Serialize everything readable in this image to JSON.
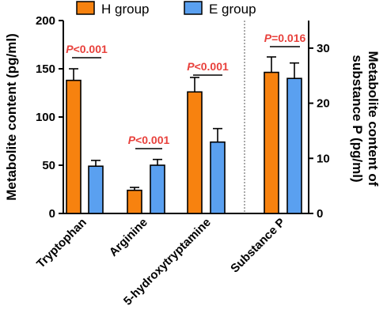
{
  "chart_data": {
    "type": "bar",
    "categories": [
      "Tryptophan",
      "Arginine",
      "5-hydroxytryptamine",
      "Substance P"
    ],
    "legend_position": "top",
    "colors": {
      "H group": "#F7820F",
      "E group": "#5AA0F0",
      "annotation": "#E8413C"
    },
    "series": [
      {
        "name": "H group",
        "values": [
          138,
          24,
          126,
          25.6
        ],
        "errors": [
          12,
          3,
          15,
          2.8
        ]
      },
      {
        "name": "E group",
        "values": [
          49,
          50,
          74,
          24.5
        ],
        "errors": [
          6,
          6,
          14,
          2.8
        ]
      }
    ],
    "axes": {
      "left": {
        "label": "Metabolite content (pg/ml)",
        "ylim": [
          0,
          200
        ],
        "ticks": [
          "0",
          "50",
          "100",
          "150",
          "200"
        ]
      },
      "right": {
        "label_line1": "Metabolite content of",
        "label_line2": "substance P (pg/ml)",
        "ylim": [
          0,
          35
        ],
        "ticks": [
          "0",
          "10",
          "20",
          "30"
        ],
        "applies_to": [
          "Substance P"
        ]
      }
    },
    "annotations": [
      {
        "category": "Tryptophan",
        "prefix": "P",
        "text": "<0.001"
      },
      {
        "category": "Arginine",
        "prefix": "P",
        "text": "<0.001"
      },
      {
        "category": "5-hydroxytryptamine",
        "prefix": "P",
        "text": "<0.001"
      },
      {
        "category": "Substance P",
        "prefix": "P",
        "text": "=0.016"
      }
    ],
    "grid": false,
    "separator": "dotted vertical line between 5-hydroxytryptamine and Substance P"
  }
}
